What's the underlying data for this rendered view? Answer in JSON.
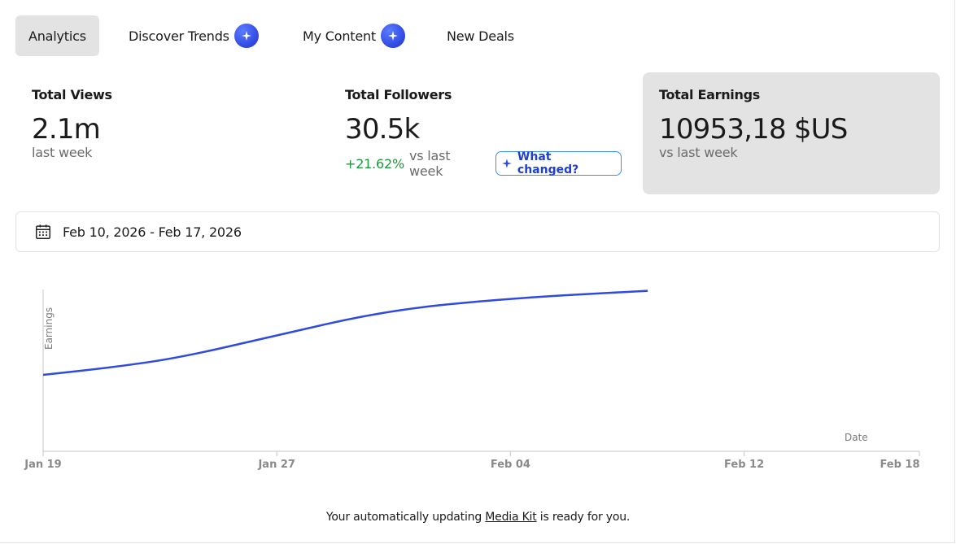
{
  "tabs": [
    {
      "label": "Analytics",
      "active": true,
      "ai_icon": false
    },
    {
      "label": "Discover Trends",
      "active": false,
      "ai_icon": true
    },
    {
      "label": "My Content",
      "active": false,
      "ai_icon": true
    },
    {
      "label": "New Deals",
      "active": false,
      "ai_icon": false
    }
  ],
  "stats": {
    "views": {
      "label": "Total Views",
      "value": "2.1m",
      "sub": "last week"
    },
    "followers": {
      "label": "Total Followers",
      "value": "30.5k",
      "change": "+21.62%",
      "change_suffix": "vs last week",
      "action_label": "What changed?"
    },
    "earnings": {
      "label": "Total Earnings",
      "value": "10953,18 $US",
      "sub": "vs last week"
    }
  },
  "date_range": {
    "text": "Feb 10, 2026 - Feb 17, 2026",
    "icon": "calendar-icon"
  },
  "chart_data": {
    "type": "line",
    "ylabel": "Earnings",
    "xlabel": "Date",
    "x_ticks": [
      "Jan 19",
      "Jan 27",
      "Feb 04",
      "Feb 12",
      "Feb 18"
    ],
    "x_tick_days": [
      0,
      8,
      16,
      24,
      30
    ],
    "series": [
      {
        "color": "#2f4ae0",
        "points": [
          {
            "day": 0,
            "value": 1000
          },
          {
            "day": 2.3,
            "value": 1095
          },
          {
            "day": 4.6,
            "value": 1220
          },
          {
            "day": 7.6,
            "value": 1480
          },
          {
            "day": 11.7,
            "value": 1840
          },
          {
            "day": 15.9,
            "value": 2000
          },
          {
            "day": 20.7,
            "value": 2100
          }
        ]
      }
    ],
    "ylim": [
      0,
      2500
    ],
    "grid": false
  },
  "footer": {
    "prefix": "Your automatically updating ",
    "link": "Media Kit",
    "suffix": " is ready for you."
  },
  "colors": {
    "accent": "#2f4ae0",
    "positive": "#1a9a3a",
    "tab_active_bg": "#e3e3e3"
  }
}
